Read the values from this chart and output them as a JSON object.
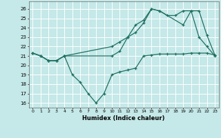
{
  "xlabel": "Humidex (Indice chaleur)",
  "bg_color": "#c5e8e8",
  "line_color": "#1e7060",
  "grid_color": "#ffffff",
  "ylim": [
    15.5,
    26.8
  ],
  "xlim": [
    -0.5,
    23.5
  ],
  "yticks": [
    16,
    17,
    18,
    19,
    20,
    21,
    22,
    23,
    24,
    25,
    26
  ],
  "xticks": [
    0,
    1,
    2,
    3,
    4,
    5,
    6,
    7,
    8,
    9,
    10,
    11,
    12,
    13,
    14,
    15,
    16,
    17,
    18,
    19,
    20,
    21,
    22,
    23
  ],
  "series1_x": [
    0,
    1,
    2,
    3,
    4,
    10,
    11,
    12,
    13,
    14,
    15,
    16,
    17,
    18,
    19,
    20,
    21,
    22,
    23
  ],
  "series1_y": [
    21.3,
    21.0,
    20.5,
    20.5,
    21.0,
    22.0,
    22.5,
    23.0,
    23.5,
    24.5,
    26.0,
    25.8,
    25.3,
    25.3,
    25.8,
    25.8,
    23.0,
    22.0,
    21.0
  ],
  "series2_x": [
    0,
    1,
    2,
    3,
    4,
    5,
    6,
    7,
    8,
    9,
    10,
    11,
    12,
    13,
    14,
    15,
    16,
    17,
    18,
    19,
    20,
    21,
    22,
    23
  ],
  "series2_y": [
    21.3,
    21.0,
    20.5,
    20.5,
    21.0,
    19.0,
    18.2,
    17.0,
    16.0,
    17.0,
    19.0,
    19.3,
    19.5,
    19.7,
    21.0,
    21.1,
    21.2,
    21.2,
    21.2,
    21.2,
    21.3,
    21.3,
    21.3,
    21.1
  ],
  "series3_x": [
    0,
    1,
    2,
    3,
    4,
    10,
    11,
    12,
    13,
    14,
    15,
    16,
    19,
    20,
    21,
    22,
    23
  ],
  "series3_y": [
    21.3,
    21.0,
    20.5,
    20.5,
    21.0,
    21.0,
    21.5,
    23.0,
    24.3,
    24.8,
    26.0,
    25.8,
    24.3,
    25.8,
    25.8,
    23.2,
    21.1
  ]
}
